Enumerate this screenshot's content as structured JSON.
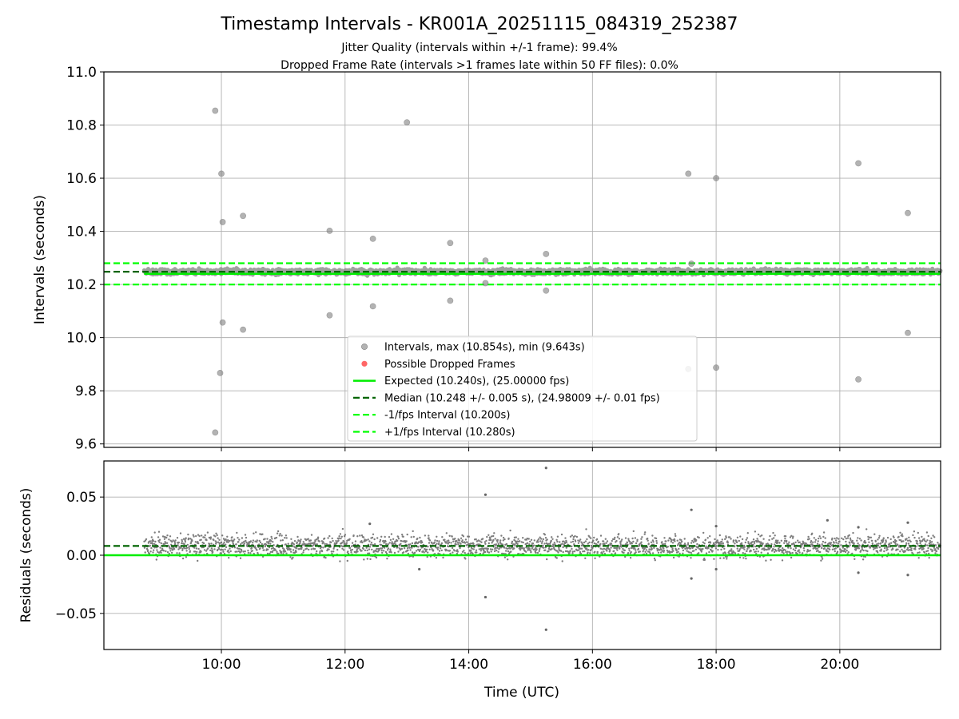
{
  "chart_data": {
    "type": "scatter",
    "title": "Timestamp Intervals - KR001A_20251115_084319_252387",
    "subtitles": [
      "Jitter Quality (intervals within +/-1 frame): 99.4%",
      "Dropped Frame Rate (intervals >1 frames late within 50 FF files): 0.0%"
    ],
    "xlabel": "Time (UTC)",
    "x_unit": "hours UTC",
    "xlim": [
      8.1,
      21.63
    ],
    "x_ticks": [
      10,
      12,
      14,
      16,
      18,
      20
    ],
    "x_tick_labels": [
      "10:00",
      "12:00",
      "14:00",
      "16:00",
      "18:00",
      "20:00"
    ],
    "band_x_range": [
      8.75,
      21.63
    ],
    "top_panel": {
      "ylabel": "Intervals (seconds)",
      "ylim": [
        9.587,
        11.0
      ],
      "y_ticks": [
        9.6,
        9.8,
        10.0,
        10.2,
        10.4,
        10.6,
        10.8,
        11.0
      ],
      "y_tick_labels": [
        "9.6",
        "9.8",
        "10.0",
        "10.2",
        "10.4",
        "10.6",
        "10.8",
        "11.0"
      ],
      "expected": 10.24,
      "median": 10.248,
      "lower_bound": 10.2,
      "upper_bound": 10.28,
      "outliers": [
        [
          9.9,
          10.854
        ],
        [
          10.0,
          10.617
        ],
        [
          10.02,
          10.435
        ],
        [
          10.35,
          10.458
        ],
        [
          10.02,
          10.057
        ],
        [
          10.35,
          10.03
        ],
        [
          9.98,
          9.867
        ],
        [
          9.9,
          9.643
        ],
        [
          11.75,
          10.402
        ],
        [
          11.75,
          10.084
        ],
        [
          12.45,
          10.372
        ],
        [
          12.45,
          10.118
        ],
        [
          13.0,
          10.81
        ],
        [
          13.7,
          10.356
        ],
        [
          13.7,
          10.139
        ],
        [
          14.27,
          10.29
        ],
        [
          14.27,
          10.205
        ],
        [
          15.25,
          10.315
        ],
        [
          15.25,
          10.177
        ],
        [
          17.55,
          10.617
        ],
        [
          17.55,
          9.882
        ],
        [
          17.6,
          10.278
        ],
        [
          18.0,
          10.6
        ],
        [
          18.0,
          9.887
        ],
        [
          20.3,
          10.656
        ],
        [
          20.3,
          9.843
        ],
        [
          21.1,
          10.469
        ],
        [
          21.1,
          10.018
        ]
      ],
      "dropped_frames": [],
      "legend": [
        {
          "label": "Intervals, max (10.854s), min (9.643s)",
          "style": "gray-dot"
        },
        {
          "label": "Possible Dropped Frames",
          "style": "red-dot"
        },
        {
          "label": "Expected (10.240s), (25.00000 fps)",
          "style": "solid-lime"
        },
        {
          "label": "Median (10.248 +/- 0.005 s), (24.98009 +/- 0.01 fps)",
          "style": "dashed-darkgreen"
        },
        {
          "label": "-1/fps Interval (10.200s)",
          "style": "dashed-lime"
        },
        {
          "label": "+1/fps Interval (10.280s)",
          "style": "dashed-lime"
        }
      ]
    },
    "bottom_panel": {
      "ylabel": "Residuals (seconds)",
      "ylim": [
        -0.081,
        0.081
      ],
      "y_ticks": [
        -0.05,
        0.0,
        0.05
      ],
      "y_tick_labels": [
        "−0.05",
        "0.00",
        "0.05"
      ],
      "zero_line": 0.0,
      "median_offset": 0.008,
      "outliers": [
        [
          14.27,
          0.052
        ],
        [
          15.25,
          0.075
        ],
        [
          17.6,
          0.039
        ],
        [
          18.0,
          0.025
        ],
        [
          20.3,
          0.024
        ],
        [
          21.1,
          0.028
        ],
        [
          14.27,
          -0.036
        ],
        [
          15.25,
          -0.064
        ],
        [
          17.6,
          -0.02
        ],
        [
          18.0,
          -0.012
        ],
        [
          20.3,
          -0.015
        ],
        [
          21.1,
          -0.017
        ],
        [
          12.4,
          0.027
        ],
        [
          13.2,
          -0.012
        ],
        [
          19.8,
          0.03
        ]
      ]
    },
    "colors": {
      "intervals": "#808080",
      "dropped": "#ff0000",
      "expected": "#00ee00",
      "median": "#006400",
      "bounds": "#00ff00",
      "grid": "#b0b0b0"
    }
  }
}
